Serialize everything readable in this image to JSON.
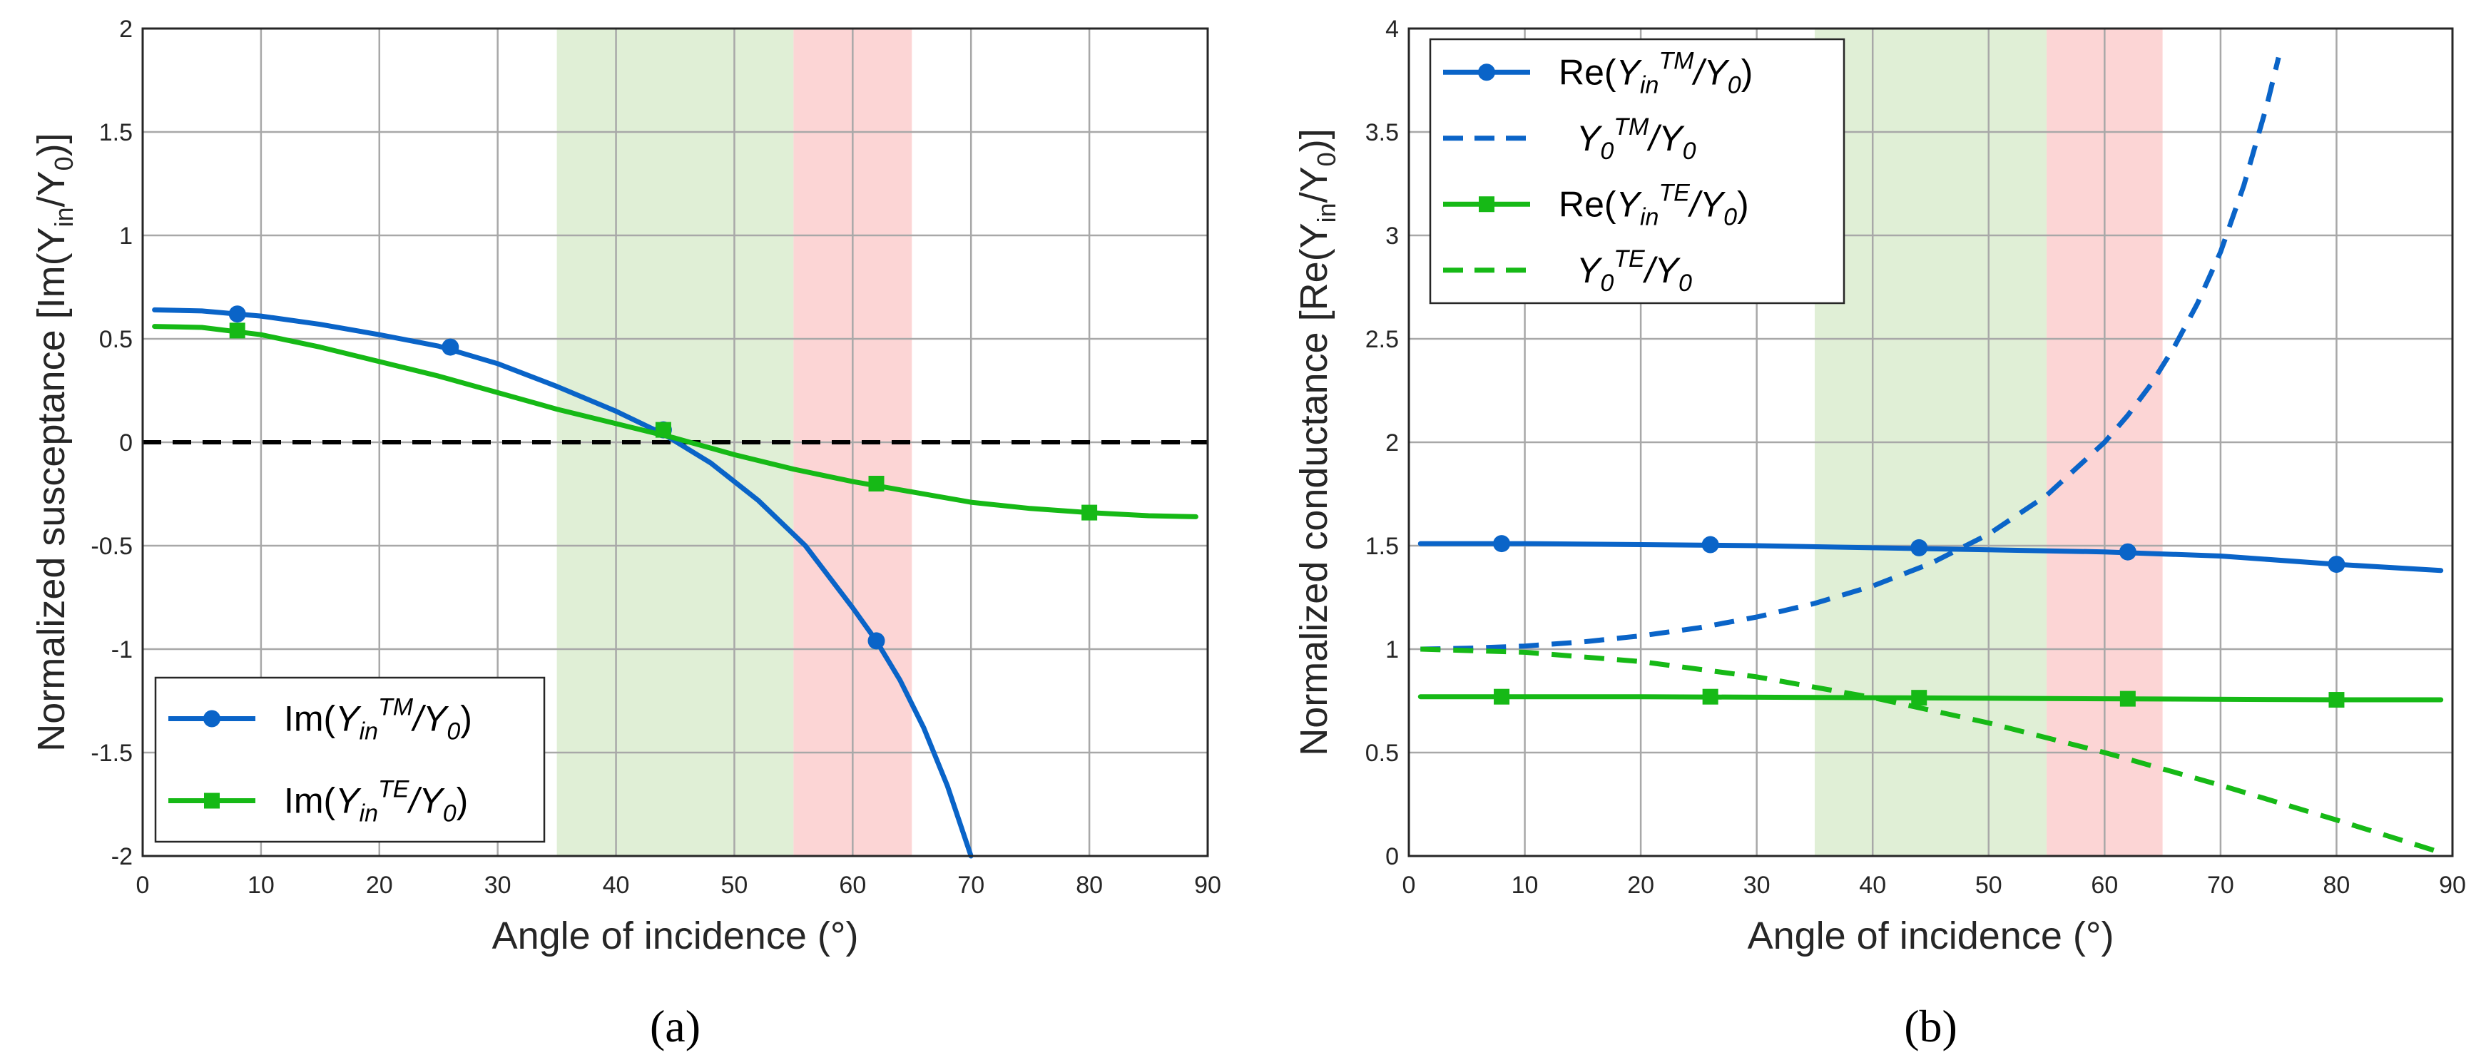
{
  "colors": {
    "blue": "#0a64c8",
    "green": "#16b916",
    "green_band": "#e0efd6",
    "red_band": "#fcd5d5",
    "zero_line": "#000000",
    "grid": "#a8a8a8"
  },
  "chart_data": [
    {
      "type": "line",
      "panel_label": "(a)",
      "xlabel": "Angle of incidence (°)",
      "ylabel": "Normalized susceptance [Im(Y_in/Y_0)]",
      "ylabel_parts": {
        "pre": "Normalized susceptance [Im(Y",
        "sub1": "in",
        "mid": "/Y",
        "sub2": "0",
        "post": ")]"
      },
      "xlim": [
        0,
        90
      ],
      "ylim": [
        -2,
        2
      ],
      "xticks": [
        0,
        10,
        20,
        30,
        40,
        50,
        60,
        70,
        80,
        90
      ],
      "yticks": [
        -2,
        -1.5,
        -1,
        -0.5,
        0,
        0.5,
        1,
        1.5,
        2
      ],
      "xtick_labels": [
        "0",
        "10",
        "20",
        "30",
        "40",
        "50",
        "60",
        "70",
        "80",
        "90"
      ],
      "ytick_labels": [
        "-2",
        "-1.5",
        "-1",
        "-0.5",
        "0",
        "0.5",
        "1",
        "1.5",
        "2"
      ],
      "grid": true,
      "bands": [
        {
          "from": 35,
          "to": 55,
          "color": "green_band"
        },
        {
          "from": 55,
          "to": 65,
          "color": "red_band"
        }
      ],
      "reference_lines": [
        {
          "y": 0,
          "style": "dashed",
          "color": "zero_line"
        }
      ],
      "legend_position": "bottom-left",
      "series": [
        {
          "name": "Im(Y_in^TM/Y_0)",
          "legend": {
            "pre": "Im(",
            "base": "Y",
            "sub": "in",
            "sup": "TM",
            "post": "/Y",
            "sub2": "0",
            "end": ")"
          },
          "color": "blue",
          "style": "solid",
          "marker": "circle",
          "x": [
            1,
            5,
            10,
            15,
            20,
            25,
            30,
            35,
            40,
            44,
            48,
            52,
            56,
            60,
            62,
            64,
            66,
            68,
            70
          ],
          "y": [
            0.64,
            0.635,
            0.61,
            0.57,
            0.52,
            0.465,
            0.38,
            0.27,
            0.15,
            0.04,
            -0.1,
            -0.28,
            -0.5,
            -0.8,
            -0.96,
            -1.15,
            -1.38,
            -1.66,
            -2.0
          ],
          "markers_x": [
            8,
            26,
            44,
            62
          ],
          "markers_y": [
            0.62,
            0.46,
            0.06,
            -0.96
          ]
        },
        {
          "name": "Im(Y_in^TE/Y_0)",
          "legend": {
            "pre": "Im(",
            "base": "Y",
            "sub": "in",
            "sup": "TE",
            "post": "/Y",
            "sub2": "0",
            "end": ")"
          },
          "color": "green",
          "style": "solid",
          "marker": "square",
          "x": [
            1,
            5,
            10,
            15,
            20,
            25,
            30,
            35,
            40,
            45,
            50,
            55,
            60,
            65,
            70,
            75,
            80,
            85,
            89
          ],
          "y": [
            0.56,
            0.555,
            0.52,
            0.46,
            0.39,
            0.32,
            0.24,
            0.16,
            0.09,
            0.02,
            -0.06,
            -0.13,
            -0.19,
            -0.24,
            -0.29,
            -0.32,
            -0.34,
            -0.355,
            -0.36
          ],
          "markers_x": [
            8,
            44,
            62,
            80
          ],
          "markers_y": [
            0.54,
            0.06,
            -0.2,
            -0.34
          ]
        }
      ]
    },
    {
      "type": "line",
      "panel_label": "(b)",
      "xlabel": "Angle of incidence (°)",
      "ylabel": "Normalized conductance [Re(Y_in/Y_0)]",
      "ylabel_parts": {
        "pre": "Normalized conductance [Re(Y",
        "sub1": "in",
        "mid": "/Y",
        "sub2": "0",
        "post": ")]"
      },
      "xlim": [
        0,
        90
      ],
      "ylim": [
        0,
        4
      ],
      "xticks": [
        0,
        10,
        20,
        30,
        40,
        50,
        60,
        70,
        80,
        90
      ],
      "yticks": [
        0,
        0.5,
        1,
        1.5,
        2,
        2.5,
        3,
        3.5,
        4
      ],
      "xtick_labels": [
        "0",
        "10",
        "20",
        "30",
        "40",
        "50",
        "60",
        "70",
        "80",
        "90"
      ],
      "ytick_labels": [
        "0",
        "0.5",
        "1",
        "1.5",
        "2",
        "2.5",
        "3",
        "3.5",
        "4"
      ],
      "grid": true,
      "bands": [
        {
          "from": 35,
          "to": 55,
          "color": "green_band"
        },
        {
          "from": 55,
          "to": 65,
          "color": "red_band"
        }
      ],
      "reference_lines": [],
      "legend_position": "top-left",
      "series": [
        {
          "name": "Re(Y_in^TM/Y_0)",
          "legend": {
            "pre": "Re(",
            "base": "Y",
            "sub": "in",
            "sup": "TM",
            "post": "/Y",
            "sub2": "0",
            "end": ")"
          },
          "color": "blue",
          "style": "solid",
          "marker": "circle",
          "x": [
            1,
            10,
            20,
            30,
            40,
            50,
            60,
            70,
            80,
            89
          ],
          "y": [
            1.51,
            1.51,
            1.505,
            1.5,
            1.49,
            1.48,
            1.47,
            1.45,
            1.41,
            1.38
          ],
          "markers_x": [
            8,
            26,
            44,
            62,
            80
          ],
          "markers_y": [
            1.51,
            1.505,
            1.49,
            1.47,
            1.41
          ]
        },
        {
          "name": "Y_0^TM/Y_0",
          "legend": {
            "pre": "",
            "base": "Y",
            "sub": "0",
            "sup": "TM",
            "post": "/Y",
            "sub2": "0",
            "end": ""
          },
          "color": "blue",
          "style": "dashed",
          "marker": "none",
          "x": [
            1,
            5,
            10,
            15,
            20,
            25,
            30,
            35,
            40,
            45,
            50,
            55,
            60,
            62,
            64,
            66,
            68,
            70,
            72,
            74,
            75
          ],
          "y": [
            1.0,
            1.004,
            1.015,
            1.035,
            1.064,
            1.103,
            1.155,
            1.221,
            1.305,
            1.414,
            1.556,
            1.743,
            2.0,
            2.13,
            2.28,
            2.46,
            2.67,
            2.92,
            3.24,
            3.63,
            3.86
          ],
          "markers_x": [],
          "markers_y": []
        },
        {
          "name": "Re(Y_in^TE/Y_0)",
          "legend": {
            "pre": "Re(",
            "base": "Y",
            "sub": "in",
            "sup": "TE",
            "post": "/Y",
            "sub2": "0",
            "end": ")"
          },
          "color": "green",
          "style": "solid",
          "marker": "square",
          "x": [
            1,
            20,
            40,
            60,
            80,
            89
          ],
          "y": [
            0.77,
            0.77,
            0.765,
            0.76,
            0.755,
            0.755
          ],
          "markers_x": [
            8,
            26,
            44,
            62,
            80
          ],
          "markers_y": [
            0.77,
            0.77,
            0.765,
            0.76,
            0.755
          ]
        },
        {
          "name": "Y_0^TE/Y_0",
          "legend": {
            "pre": "",
            "base": "Y",
            "sub": "0",
            "sup": "TE",
            "post": "/Y",
            "sub2": "0",
            "end": ""
          },
          "color": "green",
          "style": "dashed",
          "marker": "none",
          "x": [
            1,
            10,
            20,
            30,
            40,
            50,
            60,
            70,
            80,
            85,
            89
          ],
          "y": [
            1.0,
            0.985,
            0.94,
            0.866,
            0.766,
            0.643,
            0.5,
            0.342,
            0.174,
            0.087,
            0.017
          ],
          "markers_x": [],
          "markers_y": []
        }
      ]
    }
  ]
}
